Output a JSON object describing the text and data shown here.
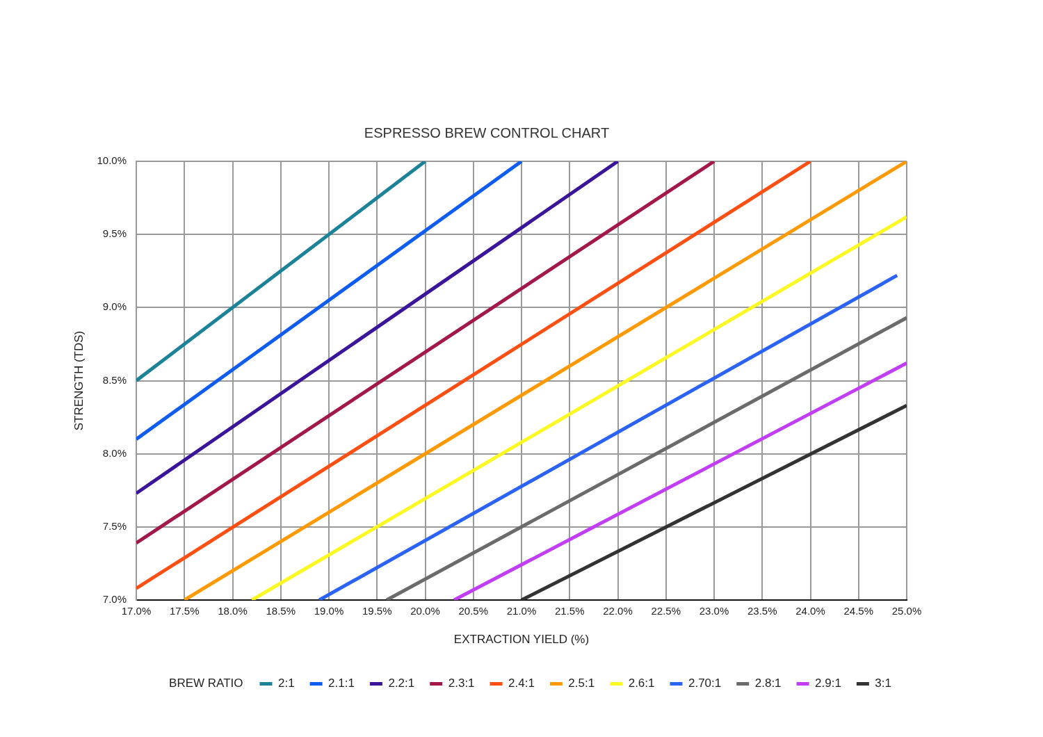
{
  "chart_data": {
    "type": "line",
    "title": "ESPRESSO BREW CONTROL CHART",
    "xlabel": "EXTRACTION YIELD (%)",
    "ylabel": "STRENGTH (TDS)",
    "legend_title": "BREW RATIO",
    "legend": "bottom",
    "grid": true,
    "xlim": [
      17,
      25
    ],
    "ylim": [
      7,
      10
    ],
    "xticks": [
      {
        "value": 17,
        "label": "17.0%"
      },
      {
        "value": 17.5,
        "label": "17.5%"
      },
      {
        "value": 18,
        "label": "18.0%"
      },
      {
        "value": 18.5,
        "label": "18.5%"
      },
      {
        "value": 19,
        "label": "19.0%"
      },
      {
        "value": 19.5,
        "label": "19.5%"
      },
      {
        "value": 20,
        "label": "20.0%"
      },
      {
        "value": 20.5,
        "label": "20.5%"
      },
      {
        "value": 21,
        "label": "21.0%"
      },
      {
        "value": 21.5,
        "label": "21.5%"
      },
      {
        "value": 22,
        "label": "22.0%"
      },
      {
        "value": 22.5,
        "label": "22.5%"
      },
      {
        "value": 23,
        "label": "23.0%"
      },
      {
        "value": 23.5,
        "label": "23.5%"
      },
      {
        "value": 24,
        "label": "24.0%"
      },
      {
        "value": 24.5,
        "label": "24.5%"
      },
      {
        "value": 25,
        "label": "25.0%"
      }
    ],
    "yticks": [
      {
        "value": 7,
        "label": "7.0%"
      },
      {
        "value": 7.5,
        "label": "7.5%"
      },
      {
        "value": 8,
        "label": "8.0%"
      },
      {
        "value": 8.5,
        "label": "8.5%"
      },
      {
        "value": 9,
        "label": "9.0%"
      },
      {
        "value": 9.5,
        "label": "9.5%"
      },
      {
        "value": 10,
        "label": "10.0%"
      }
    ],
    "series": [
      {
        "name": "2:1",
        "color": "#1b8298",
        "x": [
          17,
          20
        ],
        "values": [
          8.5,
          10
        ]
      },
      {
        "name": "2.1:1",
        "color": "#0f5cf0",
        "x": [
          17,
          21
        ],
        "values": [
          8.1,
          10
        ]
      },
      {
        "name": "2.2:1",
        "color": "#3a1499",
        "x": [
          17,
          22
        ],
        "values": [
          7.73,
          10
        ]
      },
      {
        "name": "2.3:1",
        "color": "#a3184a",
        "x": [
          17,
          23
        ],
        "values": [
          7.39,
          10
        ]
      },
      {
        "name": "2.4:1",
        "color": "#ff4f12",
        "x": [
          17,
          24
        ],
        "values": [
          7.08,
          10
        ]
      },
      {
        "name": "2.5:1",
        "color": "#ff9a05",
        "x": [
          17.5,
          25
        ],
        "values": [
          7,
          10
        ]
      },
      {
        "name": "2.6:1",
        "color": "#fbf823",
        "x": [
          18.2,
          25
        ],
        "values": [
          7,
          9.62
        ]
      },
      {
        "name": "2.70:1",
        "color": "#2a63f5",
        "x": [
          18.9,
          24.9
        ],
        "values": [
          7,
          9.22
        ]
      },
      {
        "name": "2.8:1",
        "color": "#6b6b6b",
        "x": [
          19.6,
          25
        ],
        "values": [
          7,
          8.93
        ]
      },
      {
        "name": "2.9:1",
        "color": "#c13ef5",
        "x": [
          20.3,
          25
        ],
        "values": [
          7,
          8.62
        ]
      },
      {
        "name": "3:1",
        "color": "#333333",
        "x": [
          21,
          25
        ],
        "values": [
          7,
          8.33
        ]
      }
    ]
  }
}
